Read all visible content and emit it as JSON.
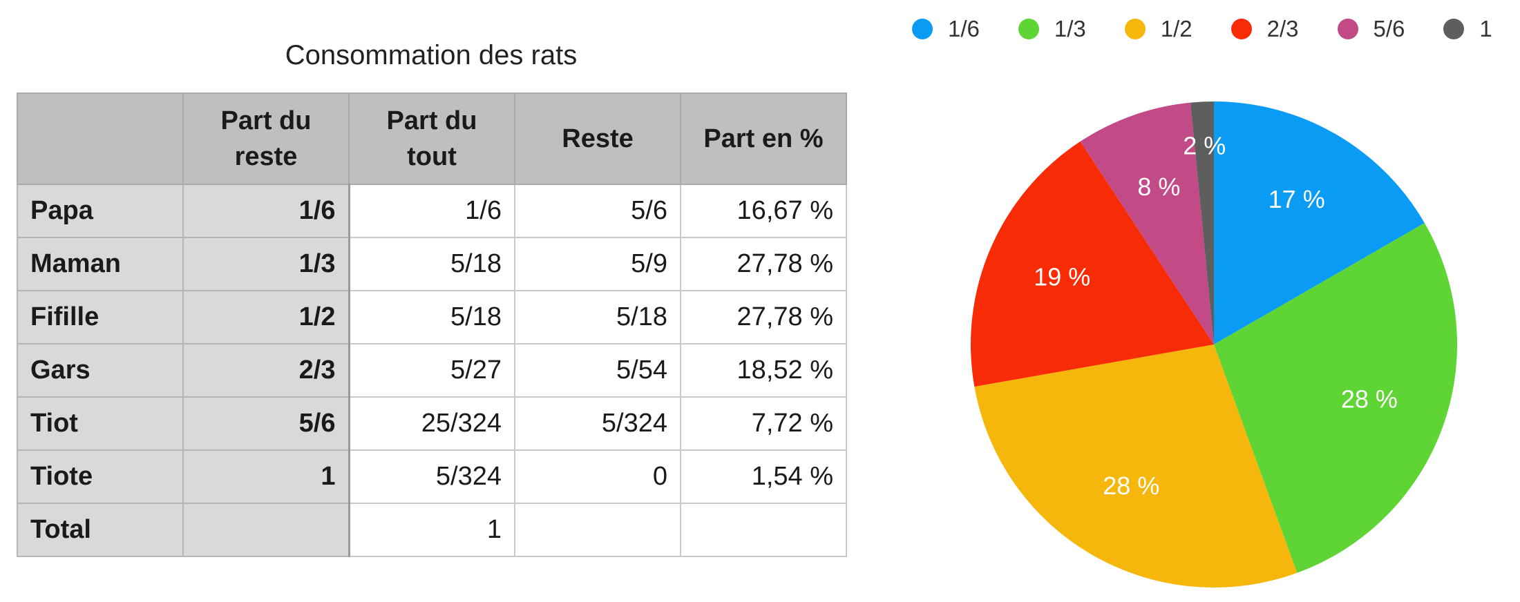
{
  "table": {
    "title": "Consommation des rats",
    "headers": [
      "",
      "Part du reste",
      "Part du tout",
      "Reste",
      "Part en %"
    ],
    "rows": [
      {
        "name": "Papa",
        "part_reste": "1/6",
        "part_tout": "1/6",
        "reste": "5/6",
        "pct": "16,67 %"
      },
      {
        "name": "Maman",
        "part_reste": "1/3",
        "part_tout": "5/18",
        "reste": "5/9",
        "pct": "27,78 %"
      },
      {
        "name": "Fifille",
        "part_reste": "1/2",
        "part_tout": "5/18",
        "reste": "5/18",
        "pct": "27,78 %"
      },
      {
        "name": "Gars",
        "part_reste": "2/3",
        "part_tout": "5/27",
        "reste": "5/54",
        "pct": "18,52 %"
      },
      {
        "name": "Tiot",
        "part_reste": "5/6",
        "part_tout": "25/324",
        "reste": "5/324",
        "pct": "7,72 %"
      },
      {
        "name": "Tiote",
        "part_reste": "1",
        "part_tout": "5/324",
        "reste": "0",
        "pct": "1,54 %"
      },
      {
        "name": "Total",
        "part_reste": "",
        "part_tout": "1",
        "reste": "",
        "pct": ""
      }
    ]
  },
  "chart_data": {
    "type": "pie",
    "legend_position": "top",
    "slices": [
      {
        "name": "1/6",
        "value": 16.67,
        "label": "17 %",
        "color": "#0a9cf5"
      },
      {
        "name": "1/3",
        "value": 27.78,
        "label": "28 %",
        "color": "#5ed435"
      },
      {
        "name": "1/2",
        "value": 27.78,
        "label": "28 %",
        "color": "#f6b70c"
      },
      {
        "name": "2/3",
        "value": 18.52,
        "label": "19 %",
        "color": "#f72b05"
      },
      {
        "name": "5/6",
        "value": 7.72,
        "label": "8 %",
        "color": "#c24a86"
      },
      {
        "name": "1",
        "value": 1.54,
        "label": "2 %",
        "color": "#5e5e5e"
      }
    ]
  }
}
